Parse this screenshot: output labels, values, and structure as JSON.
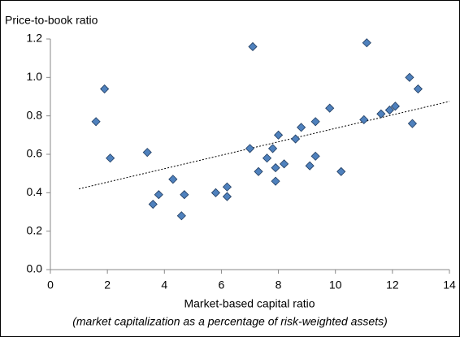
{
  "chart_data": {
    "type": "scatter",
    "title": "Price-to-book ratio",
    "xlabel": "Market-based capital ratio",
    "xsublabel": "(market capitalization as a percentage of risk-weighted assets)",
    "xlim": [
      0,
      14
    ],
    "ylim": [
      0,
      1.2
    ],
    "xticks": [
      0,
      2,
      4,
      6,
      8,
      10,
      12,
      14
    ],
    "yticks": [
      {
        "value": 0,
        "label": "0.0"
      },
      {
        "value": 0.2,
        "label": "0.2"
      },
      {
        "value": 0.4,
        "label": "0.4"
      },
      {
        "value": 0.6,
        "label": "0.6"
      },
      {
        "value": 0.8,
        "label": "0.8"
      },
      {
        "value": 1,
        "label": "1.0"
      },
      {
        "value": 1.2,
        "label": "1.2"
      }
    ],
    "grid": false,
    "series": [
      {
        "color": "#4f81bd",
        "x": [
          1.6,
          1.9,
          2.1,
          3.4,
          3.6,
          3.8,
          4.3,
          4.6,
          4.7,
          5.8,
          6.2,
          6.2,
          7.0,
          7.1,
          7.3,
          7.6,
          7.8,
          7.9,
          7.9,
          8.0,
          8.2,
          8.6,
          8.8,
          9.1,
          9.3,
          9.3,
          9.8,
          10.2,
          11.0,
          11.1,
          11.6,
          11.9,
          12.1,
          12.6,
          12.7,
          12.9
        ],
        "values": [
          0.77,
          0.94,
          0.58,
          0.61,
          0.34,
          0.39,
          0.47,
          0.28,
          0.39,
          0.4,
          0.43,
          0.38,
          0.63,
          1.16,
          0.51,
          0.58,
          0.63,
          0.53,
          0.46,
          0.7,
          0.55,
          0.68,
          0.74,
          0.54,
          0.77,
          0.59,
          0.84,
          0.51,
          0.78,
          1.18,
          0.81,
          0.83,
          0.85,
          1.0,
          0.76,
          0.94
        ]
      }
    ],
    "trendline": {
      "x": [
        1,
        14
      ],
      "values": [
        0.42,
        0.875
      ]
    }
  }
}
